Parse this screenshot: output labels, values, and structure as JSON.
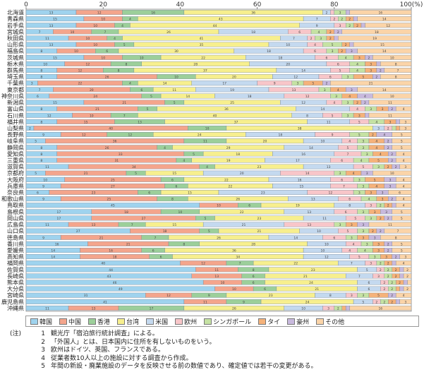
{
  "chart_data": {
    "type": "bar",
    "stacked": true,
    "orientation": "horizontal",
    "x_ticks": [
      "0",
      "20",
      "40",
      "60",
      "80",
      "100(%)"
    ],
    "xlim": [
      0,
      100
    ],
    "colors": [
      "#9fd3ee",
      "#f4a58c",
      "#9ccf9a",
      "#f7ef8e",
      "#c4d9ef",
      "#f8c6c9",
      "#c5e2a3",
      "#f5b27a",
      "#c8b9dd",
      "#fbd4a8"
    ],
    "series_names": [
      "韓国",
      "中国",
      "香港",
      "台湾",
      "米国",
      "欧州",
      "シンガポール",
      "タイ",
      "豪州",
      "その他"
    ],
    "categories": [
      "北海道",
      "青森県",
      "岩手県",
      "宮城県",
      "秋田県",
      "山形県",
      "福島県",
      "茨城県",
      "栃木県",
      "群馬県",
      "埼玉県",
      "千葉県",
      "東京都",
      "神奈川県",
      "新潟県",
      "富山県",
      "石川県",
      "福井県",
      "山梨県",
      "長野県",
      "岐阜県",
      "静岡県",
      "愛知県",
      "三重県",
      "滋賀県",
      "京都府",
      "大阪府",
      "兵庫県",
      "奈良県",
      "和歌山県",
      "鳥取県",
      "島根県",
      "岡山県",
      "広島県",
      "山口県",
      "徳島県",
      "香川県",
      "愛媛県",
      "高知県",
      "福岡県",
      "佐賀県",
      "長崎県",
      "熊本県",
      "大分県",
      "宮崎県",
      "鹿児島県",
      "沖縄県"
    ],
    "rows": [
      [
        13,
        12,
        16,
        36,
        2,
        1,
        3,
        0,
        1,
        16
      ],
      [
        15,
        10,
        4,
        43,
        7,
        2,
        2,
        2,
        1,
        14
      ],
      [
        13,
        10,
        4,
        44,
        9,
        3,
        2,
        2,
        1,
        12
      ],
      [
        7,
        10,
        7,
        26,
        18,
        6,
        4,
        2,
        2,
        18
      ],
      [
        11,
        10,
        4,
        41,
        7,
        2,
        3,
        2,
        1,
        19
      ],
      [
        13,
        10,
        5,
        35,
        10,
        4,
        5,
        2,
        1,
        15
      ],
      [
        8,
        10,
        6,
        30,
        18,
        6,
        3,
        2,
        3,
        14
      ],
      [
        15,
        10,
        10,
        22,
        18,
        6,
        4,
        3,
        2,
        10
      ],
      [
        10,
        12,
        8,
        28,
        20,
        6,
        4,
        3,
        1,
        8
      ],
      [
        8,
        12,
        8,
        37,
        14,
        5,
        4,
        3,
        2,
        7
      ],
      [
        8,
        26,
        10,
        20,
        12,
        6,
        3,
        5,
        2,
        8
      ],
      [
        3,
        22,
        4,
        14,
        17,
        9,
        3,
        5,
        2,
        21
      ],
      [
        7,
        20,
        6,
        11,
        19,
        13,
        3,
        4,
        3,
        14
      ],
      [
        6,
        24,
        5,
        14,
        18,
        12,
        3,
        4,
        4,
        10
      ],
      [
        15,
        21,
        5,
        25,
        12,
        4,
        3,
        2,
        2,
        11
      ],
      [
        8,
        21,
        5,
        36,
        14,
        4,
        3,
        3,
        2,
        4
      ],
      [
        12,
        10,
        7,
        40,
        8,
        5,
        3,
        3,
        1,
        11
      ],
      [
        8,
        15,
        13,
        37,
        11,
        5,
        4,
        3,
        1,
        3
      ],
      [
        2,
        40,
        10,
        38,
        3,
        2,
        1,
        1,
        0,
        3
      ],
      [
        9,
        12,
        12,
        24,
        18,
        9,
        5,
        2,
        4,
        5
      ],
      [
        5,
        36,
        11,
        20,
        10,
        4,
        3,
        4,
        2,
        5
      ],
      [
        8,
        26,
        4,
        29,
        14,
        5,
        3,
        4,
        2,
        5
      ],
      [
        8,
        33,
        5,
        18,
        16,
        7,
        3,
        4,
        2,
        4
      ],
      [
        8,
        31,
        4,
        19,
        17,
        6,
        4,
        5,
        2,
        4
      ],
      [
        11,
        34,
        4,
        23,
        13,
        5,
        3,
        2,
        2,
        3
      ],
      [
        5,
        21,
        5,
        15,
        20,
        14,
        3,
        4,
        3,
        10
      ],
      [
        10,
        25,
        6,
        22,
        16,
        6,
        3,
        5,
        3,
        4
      ],
      [
        9,
        27,
        6,
        22,
        15,
        7,
        3,
        4,
        3,
        4
      ],
      [
        6,
        23,
        6,
        15,
        23,
        12,
        3,
        3,
        3,
        6
      ],
      [
        9,
        25,
        8,
        26,
        13,
        6,
        4,
        3,
        2,
        4
      ],
      [
        45,
        10,
        6,
        19,
        8,
        3,
        2,
        2,
        1,
        4
      ],
      [
        17,
        18,
        10,
        22,
        13,
        6,
        3,
        3,
        3,
        5
      ],
      [
        17,
        27,
        5,
        23,
        11,
        5,
        3,
        2,
        2,
        5
      ],
      [
        11,
        13,
        7,
        15,
        21,
        13,
        3,
        3,
        3,
        11
      ],
      [
        27,
        18,
        5,
        21,
        10,
        5,
        3,
        2,
        2,
        7
      ],
      [
        9,
        21,
        7,
        26,
        14,
        6,
        3,
        3,
        3,
        8
      ],
      [
        16,
        21,
        8,
        28,
        10,
        4,
        3,
        3,
        2,
        5
      ],
      [
        14,
        16,
        6,
        36,
        10,
        4,
        4,
        3,
        2,
        5
      ],
      [
        14,
        18,
        6,
        34,
        12,
        5,
        3,
        3,
        2,
        3
      ],
      [
        40,
        12,
        7,
        22,
        7,
        3,
        2,
        2,
        1,
        4
      ],
      [
        44,
        11,
        8,
        23,
        5,
        2,
        2,
        2,
        1,
        2
      ],
      [
        43,
        13,
        6,
        21,
        7,
        3,
        2,
        2,
        1,
        2
      ],
      [
        46,
        10,
        6,
        24,
        6,
        2,
        2,
        2,
        1,
        1
      ],
      [
        49,
        10,
        6,
        21,
        6,
        2,
        2,
        1,
        1,
        2
      ],
      [
        31,
        12,
        9,
        23,
        8,
        3,
        3,
        5,
        2,
        4
      ],
      [
        41,
        11,
        9,
        24,
        5,
        2,
        2,
        2,
        1,
        3
      ],
      [
        11,
        13,
        17,
        26,
        10,
        3,
        2,
        1,
        1,
        16
      ]
    ]
  },
  "legend_title_note": "",
  "notes": {
    "prefix": "(注)",
    "items": [
      {
        "num": "1",
        "text": "観光庁「宿泊旅行統計調査」による。"
      },
      {
        "num": "2",
        "text": "「外国人」とは、日本国内に住所を有しないものをいう。"
      },
      {
        "num": "3",
        "text": "欧州はドイツ、英国、フランスである。"
      },
      {
        "num": "4",
        "text": "従業者数10人以上の施設に対する調査から作成。"
      },
      {
        "num": "5",
        "text": "年間の新設・廃業施設のデータを反映させる前の数値であり、確定値では若干の変更がある。"
      }
    ]
  }
}
